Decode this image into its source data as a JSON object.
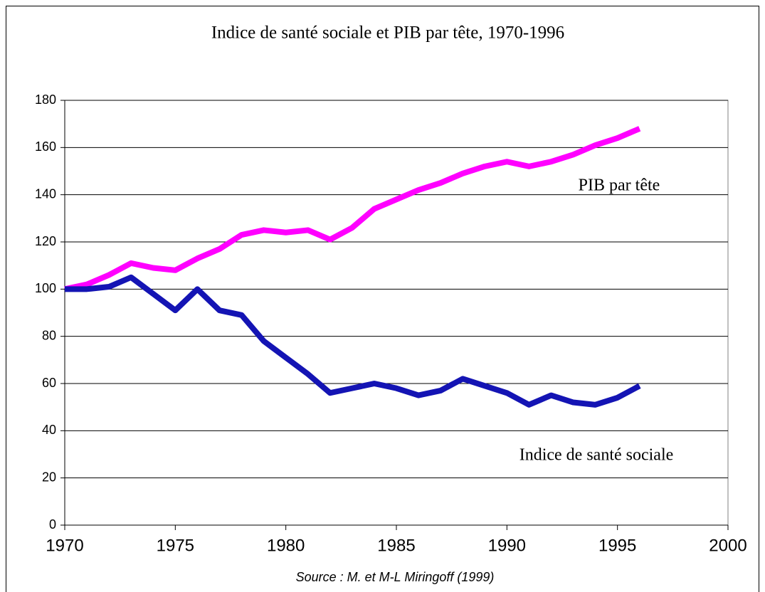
{
  "chart_data": {
    "type": "line",
    "title": "Indice de santé sociale et PIB par tête, 1970-1996",
    "source": "Source : M. et M-L Miringoff (1999)",
    "x": [
      1970,
      1971,
      1972,
      1973,
      1974,
      1975,
      1976,
      1977,
      1978,
      1979,
      1980,
      1981,
      1982,
      1983,
      1984,
      1985,
      1986,
      1987,
      1988,
      1989,
      1990,
      1991,
      1992,
      1993,
      1994,
      1995,
      1996
    ],
    "series": [
      {
        "name": "PIB par tête",
        "color": "#ff00ff",
        "values": [
          100,
          102,
          106,
          111,
          109,
          108,
          113,
          117,
          123,
          125,
          124,
          125,
          121,
          126,
          134,
          138,
          142,
          145,
          149,
          152,
          154,
          152,
          154,
          157,
          161,
          164,
          168
        ]
      },
      {
        "name": "Indice de santé sociale",
        "color": "#1414b4",
        "values": [
          100,
          100,
          101,
          105,
          98,
          91,
          100,
          91,
          89,
          78,
          71,
          64,
          56,
          58,
          60,
          58,
          55,
          57,
          62,
          59,
          56,
          51,
          55,
          52,
          51,
          54,
          59
        ]
      }
    ],
    "xlim": [
      1970,
      2000
    ],
    "xticks": [
      1970,
      1975,
      1980,
      1985,
      1990,
      1995,
      2000
    ],
    "ylim": [
      0,
      180
    ],
    "yticks": [
      0,
      20,
      40,
      60,
      80,
      100,
      120,
      140,
      160,
      180
    ],
    "grid": true
  }
}
